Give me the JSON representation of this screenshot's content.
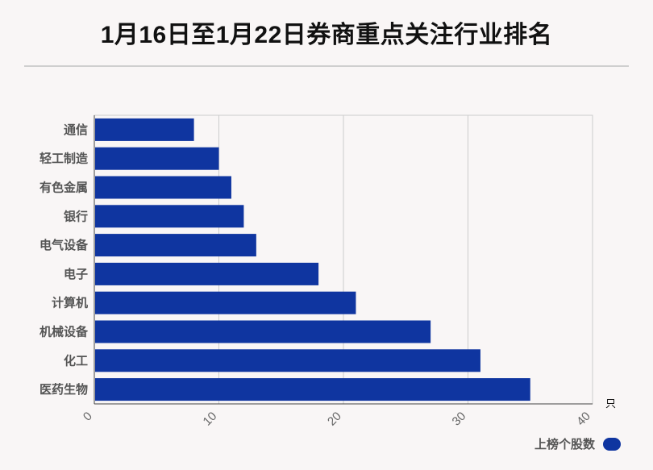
{
  "title": "1月16日至1月22日券商重点关注行业排名",
  "legend": {
    "label": "上榜个股数",
    "color": "#0f35a0"
  },
  "chart_data": {
    "type": "bar",
    "orientation": "horizontal",
    "title": "1月16日至1月22日券商重点关注行业排名",
    "categories": [
      "通信",
      "轻工制造",
      "有色金属",
      "银行",
      "电气设备",
      "电子",
      "计算机",
      "机械设备",
      "化工",
      "医药生物"
    ],
    "series": [
      {
        "name": "上榜个股数",
        "values": [
          8,
          10,
          11,
          12,
          13,
          18,
          21,
          27,
          31,
          35
        ],
        "color": "#0f35a0"
      }
    ],
    "xunit": "只",
    "xlim": [
      0,
      40
    ],
    "xticks": [
      0,
      10,
      20,
      30,
      40
    ],
    "grid": true,
    "legend_position": "bottom-right"
  }
}
